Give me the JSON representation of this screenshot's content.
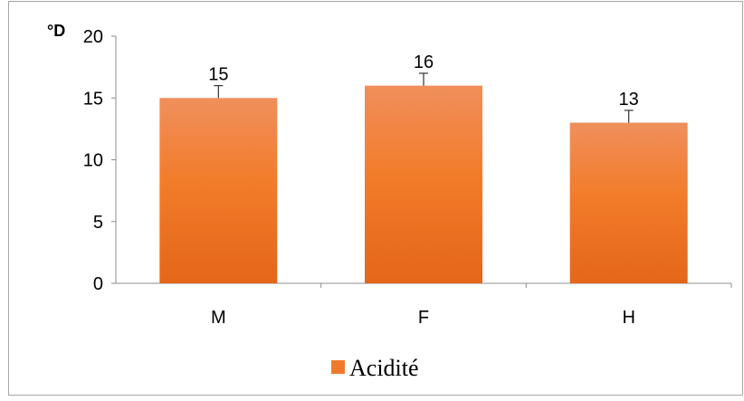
{
  "chart_data": {
    "type": "bar",
    "unit_label": "°D",
    "categories": [
      "M",
      "F",
      "H"
    ],
    "series": [
      {
        "name": "Acidité",
        "values": [
          15,
          16,
          13
        ],
        "error": [
          1,
          1,
          1
        ],
        "data_labels": [
          "15",
          "16",
          "13"
        ],
        "color": "#F07A2C"
      }
    ],
    "ylim": [
      0,
      20
    ],
    "yticks": [
      "0",
      "5",
      "10",
      "15",
      "20"
    ],
    "grid": false,
    "legend": "bottom"
  }
}
